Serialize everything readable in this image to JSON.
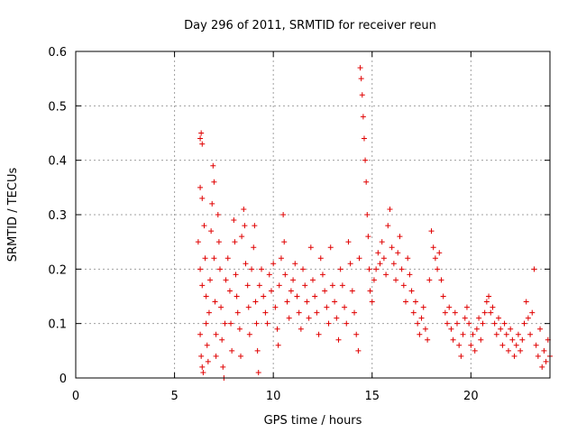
{
  "chart_data": {
    "type": "scatter",
    "title": "Day 296 of 2011, SRMTID for receiver reun",
    "xlabel": "GPS time / hours",
    "ylabel": "SRMTID / TECUs",
    "xlim": [
      0,
      24
    ],
    "ylim": [
      0,
      0.6
    ],
    "xticks": [
      0,
      5,
      10,
      15,
      20
    ],
    "xtick_labels": [
      "0",
      "5",
      "10",
      "15",
      "20"
    ],
    "yticks": [
      0,
      0.1,
      0.2,
      0.3,
      0.4,
      0.5,
      0.6
    ],
    "ytick_labels": [
      "0",
      "0.1",
      "0.2",
      "0.3",
      "0.4",
      "0.5",
      "0.6"
    ],
    "grid": true,
    "marker": "+",
    "series": [
      {
        "name": "SRMTID",
        "color": "#e00000",
        "points": [
          [
            6.3,
            0.44
          ],
          [
            6.35,
            0.45
          ],
          [
            6.4,
            0.43
          ],
          [
            6.3,
            0.35
          ],
          [
            6.4,
            0.33
          ],
          [
            6.2,
            0.25
          ],
          [
            6.3,
            0.2
          ],
          [
            6.4,
            0.17
          ],
          [
            6.3,
            0.08
          ],
          [
            6.35,
            0.04
          ],
          [
            6.4,
            0.02
          ],
          [
            6.45,
            0.01
          ],
          [
            6.5,
            0.28
          ],
          [
            6.55,
            0.22
          ],
          [
            6.6,
            0.15
          ],
          [
            6.6,
            0.1
          ],
          [
            6.65,
            0.06
          ],
          [
            6.7,
            0.03
          ],
          [
            6.75,
            0.12
          ],
          [
            6.8,
            0.18
          ],
          [
            6.85,
            0.27
          ],
          [
            6.9,
            0.32
          ],
          [
            6.95,
            0.39
          ],
          [
            7.0,
            0.36
          ],
          [
            7.0,
            0.22
          ],
          [
            7.05,
            0.14
          ],
          [
            7.1,
            0.08
          ],
          [
            7.1,
            0.04
          ],
          [
            7.2,
            0.3
          ],
          [
            7.25,
            0.25
          ],
          [
            7.3,
            0.2
          ],
          [
            7.35,
            0.13
          ],
          [
            7.4,
            0.07
          ],
          [
            7.45,
            0.02
          ],
          [
            7.5,
            0.0
          ],
          [
            7.55,
            0.1
          ],
          [
            7.6,
            0.18
          ],
          [
            7.7,
            0.22
          ],
          [
            7.8,
            0.16
          ],
          [
            7.85,
            0.1
          ],
          [
            7.9,
            0.05
          ],
          [
            8.0,
            0.29
          ],
          [
            8.05,
            0.25
          ],
          [
            8.1,
            0.19
          ],
          [
            8.15,
            0.15
          ],
          [
            8.2,
            0.12
          ],
          [
            8.3,
            0.09
          ],
          [
            8.35,
            0.04
          ],
          [
            8.4,
            0.26
          ],
          [
            8.5,
            0.31
          ],
          [
            8.55,
            0.28
          ],
          [
            8.6,
            0.21
          ],
          [
            8.7,
            0.17
          ],
          [
            8.75,
            0.13
          ],
          [
            8.8,
            0.08
          ],
          [
            8.9,
            0.2
          ],
          [
            9.0,
            0.24
          ],
          [
            9.05,
            0.28
          ],
          [
            9.1,
            0.14
          ],
          [
            9.15,
            0.1
          ],
          [
            9.2,
            0.05
          ],
          [
            9.25,
            0.01
          ],
          [
            9.3,
            0.17
          ],
          [
            9.4,
            0.2
          ],
          [
            9.5,
            0.15
          ],
          [
            9.6,
            0.12
          ],
          [
            9.7,
            0.1
          ],
          [
            9.8,
            0.19
          ],
          [
            9.9,
            0.16
          ],
          [
            10.0,
            0.21
          ],
          [
            10.1,
            0.13
          ],
          [
            10.2,
            0.09
          ],
          [
            10.25,
            0.06
          ],
          [
            10.3,
            0.17
          ],
          [
            10.4,
            0.22
          ],
          [
            10.5,
            0.3
          ],
          [
            10.55,
            0.25
          ],
          [
            10.6,
            0.19
          ],
          [
            10.7,
            0.14
          ],
          [
            10.8,
            0.11
          ],
          [
            10.9,
            0.16
          ],
          [
            11.0,
            0.18
          ],
          [
            11.1,
            0.21
          ],
          [
            11.2,
            0.15
          ],
          [
            11.3,
            0.12
          ],
          [
            11.4,
            0.09
          ],
          [
            11.5,
            0.2
          ],
          [
            11.6,
            0.17
          ],
          [
            11.7,
            0.14
          ],
          [
            11.8,
            0.11
          ],
          [
            11.9,
            0.24
          ],
          [
            12.0,
            0.18
          ],
          [
            12.1,
            0.15
          ],
          [
            12.2,
            0.12
          ],
          [
            12.3,
            0.08
          ],
          [
            12.4,
            0.22
          ],
          [
            12.5,
            0.19
          ],
          [
            12.6,
            0.16
          ],
          [
            12.7,
            0.13
          ],
          [
            12.8,
            0.1
          ],
          [
            12.9,
            0.24
          ],
          [
            13.0,
            0.17
          ],
          [
            13.1,
            0.14
          ],
          [
            13.2,
            0.11
          ],
          [
            13.3,
            0.07
          ],
          [
            13.4,
            0.2
          ],
          [
            13.5,
            0.17
          ],
          [
            13.6,
            0.13
          ],
          [
            13.7,
            0.1
          ],
          [
            13.8,
            0.25
          ],
          [
            13.9,
            0.21
          ],
          [
            14.0,
            0.16
          ],
          [
            14.1,
            0.12
          ],
          [
            14.2,
            0.08
          ],
          [
            14.3,
            0.05
          ],
          [
            14.35,
            0.22
          ],
          [
            14.4,
            0.57
          ],
          [
            14.45,
            0.55
          ],
          [
            14.5,
            0.52
          ],
          [
            14.55,
            0.48
          ],
          [
            14.6,
            0.44
          ],
          [
            14.65,
            0.4
          ],
          [
            14.7,
            0.36
          ],
          [
            14.75,
            0.3
          ],
          [
            14.8,
            0.26
          ],
          [
            14.85,
            0.2
          ],
          [
            14.9,
            0.16
          ],
          [
            15.0,
            0.14
          ],
          [
            15.1,
            0.18
          ],
          [
            15.2,
            0.2
          ],
          [
            15.3,
            0.23
          ],
          [
            15.4,
            0.21
          ],
          [
            15.5,
            0.25
          ],
          [
            15.6,
            0.22
          ],
          [
            15.7,
            0.19
          ],
          [
            15.8,
            0.28
          ],
          [
            15.9,
            0.31
          ],
          [
            16.0,
            0.24
          ],
          [
            16.1,
            0.21
          ],
          [
            16.2,
            0.18
          ],
          [
            16.3,
            0.23
          ],
          [
            16.4,
            0.26
          ],
          [
            16.5,
            0.2
          ],
          [
            16.6,
            0.17
          ],
          [
            16.7,
            0.14
          ],
          [
            16.8,
            0.22
          ],
          [
            16.9,
            0.19
          ],
          [
            17.0,
            0.16
          ],
          [
            17.1,
            0.12
          ],
          [
            17.2,
            0.14
          ],
          [
            17.3,
            0.1
          ],
          [
            17.4,
            0.08
          ],
          [
            17.5,
            0.11
          ],
          [
            17.6,
            0.13
          ],
          [
            17.7,
            0.09
          ],
          [
            17.8,
            0.07
          ],
          [
            17.9,
            0.18
          ],
          [
            18.0,
            0.27
          ],
          [
            18.1,
            0.24
          ],
          [
            18.2,
            0.22
          ],
          [
            18.3,
            0.2
          ],
          [
            18.4,
            0.23
          ],
          [
            18.5,
            0.18
          ],
          [
            18.6,
            0.15
          ],
          [
            18.7,
            0.12
          ],
          [
            18.8,
            0.1
          ],
          [
            18.9,
            0.13
          ],
          [
            19.0,
            0.09
          ],
          [
            19.1,
            0.07
          ],
          [
            19.2,
            0.12
          ],
          [
            19.3,
            0.1
          ],
          [
            19.4,
            0.06
          ],
          [
            19.5,
            0.04
          ],
          [
            19.6,
            0.08
          ],
          [
            19.7,
            0.11
          ],
          [
            19.8,
            0.13
          ],
          [
            19.9,
            0.1
          ],
          [
            20.0,
            0.06
          ],
          [
            20.1,
            0.08
          ],
          [
            20.2,
            0.05
          ],
          [
            20.3,
            0.09
          ],
          [
            20.4,
            0.11
          ],
          [
            20.5,
            0.07
          ],
          [
            20.6,
            0.1
          ],
          [
            20.7,
            0.12
          ],
          [
            20.8,
            0.14
          ],
          [
            20.9,
            0.15
          ],
          [
            21.0,
            0.12
          ],
          [
            21.1,
            0.13
          ],
          [
            21.2,
            0.1
          ],
          [
            21.3,
            0.08
          ],
          [
            21.4,
            0.11
          ],
          [
            21.5,
            0.09
          ],
          [
            21.6,
            0.06
          ],
          [
            21.7,
            0.1
          ],
          [
            21.8,
            0.08
          ],
          [
            21.9,
            0.05
          ],
          [
            22.0,
            0.09
          ],
          [
            22.1,
            0.07
          ],
          [
            22.2,
            0.04
          ],
          [
            22.3,
            0.06
          ],
          [
            22.4,
            0.08
          ],
          [
            22.5,
            0.05
          ],
          [
            22.6,
            0.07
          ],
          [
            22.7,
            0.1
          ],
          [
            22.8,
            0.14
          ],
          [
            22.9,
            0.11
          ],
          [
            23.0,
            0.08
          ],
          [
            23.1,
            0.12
          ],
          [
            23.2,
            0.2
          ],
          [
            23.3,
            0.06
          ],
          [
            23.4,
            0.04
          ],
          [
            23.5,
            0.09
          ],
          [
            23.6,
            0.02
          ],
          [
            23.7,
            0.05
          ],
          [
            23.8,
            0.03
          ],
          [
            23.9,
            0.07
          ],
          [
            24.0,
            0.04
          ]
        ]
      }
    ]
  }
}
